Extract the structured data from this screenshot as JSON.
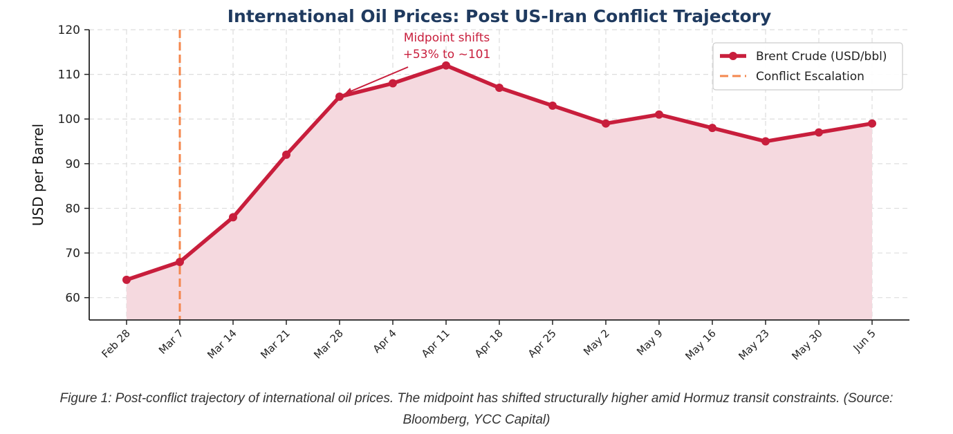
{
  "caption": {
    "line1": "Figure 1: Post-conflict trajectory of international oil prices. The midpoint has shifted structurally higher amid Hormuz transit constraints. (Source:",
    "line2": "Bloomberg, YCC Capital)"
  },
  "colors": {
    "title": "#1f3a5f",
    "line": "#c81e3c",
    "fill": "#f5d9df",
    "marker_line": "#f4874e",
    "annotation": "#c81e3c",
    "grid": "#dddddd",
    "axis": "#222222"
  },
  "chart_data": {
    "type": "line",
    "title": "International Oil Prices: Post US-Iran Conflict Trajectory",
    "xlabel": "",
    "ylabel": "USD per Barrel",
    "categories": [
      "Feb 28",
      "Mar 7",
      "Mar 14",
      "Mar 21",
      "Mar 28",
      "Apr 4",
      "Apr 11",
      "Apr 18",
      "Apr 25",
      "May 2",
      "May 9",
      "May 16",
      "May 23",
      "May 30",
      "Jun 5"
    ],
    "series": [
      {
        "name": "Brent Crude (USD/bbl)",
        "values": [
          64,
          68,
          78,
          92,
          105,
          108,
          112,
          107,
          103,
          99,
          101,
          98,
          95,
          97,
          99
        ]
      }
    ],
    "vline": {
      "name": "Conflict Escalation",
      "category": "Mar 7"
    },
    "annotation": {
      "lines": [
        "Midpoint shifts",
        "+53% to ~101"
      ],
      "points_to": "Mar 28"
    },
    "ylim": [
      55,
      120
    ],
    "yticks": [
      60,
      70,
      80,
      90,
      100,
      110,
      120
    ],
    "grid": true,
    "legend": "top-right"
  }
}
